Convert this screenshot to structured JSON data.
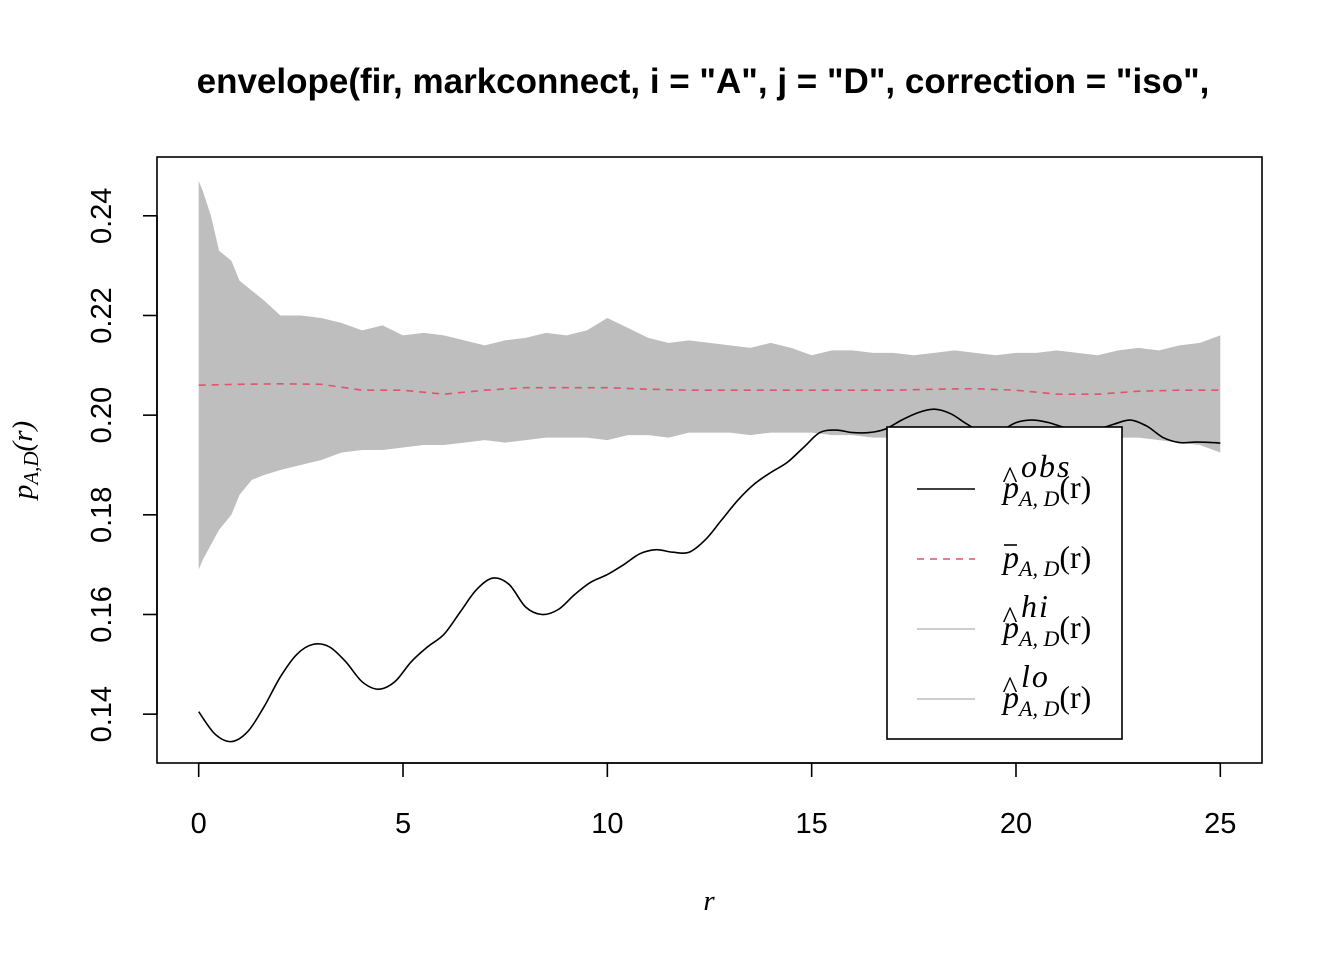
{
  "chart_data": {
    "type": "line",
    "title": "envelope(fir, markconnect, i = \"A\", j = \"D\", correction = \"iso\",",
    "xlabel": "r",
    "ylabel": "p_{A,D}(r)",
    "xlim": [
      -1.02,
      26.02
    ],
    "ylim": [
      0.1302,
      0.2518
    ],
    "xticks": [
      0,
      5,
      10,
      15,
      20,
      25
    ],
    "yticks": [
      0.14,
      0.16,
      0.18,
      0.2,
      0.22,
      0.24
    ],
    "xtick_labels": [
      "0",
      "5",
      "10",
      "15",
      "20",
      "25"
    ],
    "ytick_labels": [
      "0.14",
      "0.16",
      "0.18",
      "0.20",
      "0.22",
      "0.24"
    ],
    "grid": false,
    "legend_position": "bottom-right",
    "legend": [
      {
        "key": "obs",
        "sup": "obs",
        "color": "#000000",
        "style": "solid"
      },
      {
        "key": "theo",
        "sup": "",
        "color": "#DF536B",
        "style": "dashed"
      },
      {
        "key": "hi",
        "sup": "hi",
        "color": "#BEBEBE",
        "style": "solid"
      },
      {
        "key": "lo",
        "sup": "lo",
        "color": "#BEBEBE",
        "style": "solid"
      }
    ],
    "legend_text": {
      "sub": "A, D",
      "arg": "(r)"
    },
    "colors": {
      "envelope": "#BEBEBE",
      "obs": "#000000",
      "theo": "#DF536B"
    },
    "series": [
      {
        "key": "obs",
        "x": [
          0,
          0.4,
          0.8,
          1.2,
          1.6,
          2.0,
          2.4,
          2.8,
          3.2,
          3.6,
          4.0,
          4.4,
          4.8,
          5.2,
          5.6,
          6.0,
          6.4,
          6.8,
          7.2,
          7.6,
          8.0,
          8.4,
          8.8,
          9.2,
          9.6,
          10.0,
          10.4,
          10.8,
          11.2,
          11.6,
          12.0,
          12.4,
          12.8,
          13.2,
          13.6,
          14.0,
          14.4,
          14.8,
          15.2,
          15.6,
          16.0,
          16.4,
          16.8,
          17.2,
          17.6,
          18.0,
          18.4,
          18.8,
          19.2,
          19.6,
          20.0,
          20.4,
          20.8,
          21.2,
          21.6,
          22.0,
          22.4,
          22.8,
          23.2,
          23.6,
          24.0,
          24.4,
          24.8,
          25.0
        ],
        "y": [
          0.1405,
          0.136,
          0.1345,
          0.1365,
          0.1415,
          0.1475,
          0.152,
          0.154,
          0.1535,
          0.1505,
          0.1465,
          0.145,
          0.1465,
          0.1505,
          0.1535,
          0.156,
          0.1605,
          0.165,
          0.1673,
          0.166,
          0.1615,
          0.16,
          0.161,
          0.164,
          0.1665,
          0.168,
          0.17,
          0.1722,
          0.173,
          0.1725,
          0.1725,
          0.175,
          0.179,
          0.183,
          0.1862,
          0.1885,
          0.1905,
          0.1935,
          0.1965,
          0.197,
          0.1965,
          0.1965,
          0.1972,
          0.199,
          0.2005,
          0.2012,
          0.2003,
          0.1982,
          0.1965,
          0.1968,
          0.1985,
          0.199,
          0.1985,
          0.1975,
          0.197,
          0.1972,
          0.1982,
          0.199,
          0.1978,
          0.1955,
          0.1945,
          0.1946,
          0.1945,
          0.1944
        ]
      },
      {
        "key": "theo",
        "x": [
          0,
          1,
          2,
          3,
          4,
          5,
          6,
          7,
          8,
          9,
          10,
          11,
          12,
          13,
          14,
          15,
          16,
          17,
          18,
          19,
          20,
          21,
          22,
          23,
          24,
          25
        ],
        "y": [
          0.206,
          0.2062,
          0.2063,
          0.2062,
          0.205,
          0.205,
          0.2042,
          0.205,
          0.2055,
          0.2055,
          0.2055,
          0.2052,
          0.205,
          0.205,
          0.205,
          0.205,
          0.205,
          0.205,
          0.2052,
          0.2053,
          0.205,
          0.2042,
          0.2042,
          0.2048,
          0.205,
          0.205
        ]
      },
      {
        "key": "hi",
        "x": [
          0,
          0.1,
          0.3,
          0.5,
          0.8,
          1.0,
          1.3,
          1.6,
          2.0,
          2.5,
          3.0,
          3.5,
          4.0,
          4.5,
          5.0,
          5.5,
          6.0,
          6.5,
          7.0,
          7.5,
          8.0,
          8.5,
          9.0,
          9.5,
          10.0,
          10.5,
          11.0,
          11.5,
          12.0,
          12.5,
          13.0,
          13.5,
          14.0,
          14.5,
          15.0,
          15.5,
          16.0,
          16.5,
          17.0,
          17.5,
          18.0,
          18.5,
          19.0,
          19.5,
          20.0,
          20.5,
          21.0,
          21.5,
          22.0,
          22.5,
          23.0,
          23.5,
          24.0,
          24.5,
          25.0
        ],
        "y": [
          0.247,
          0.245,
          0.24,
          0.233,
          0.231,
          0.227,
          0.225,
          0.223,
          0.22,
          0.22,
          0.2195,
          0.2185,
          0.217,
          0.218,
          0.216,
          0.2165,
          0.216,
          0.215,
          0.214,
          0.215,
          0.2155,
          0.2165,
          0.216,
          0.217,
          0.2195,
          0.2175,
          0.2155,
          0.2145,
          0.215,
          0.2145,
          0.214,
          0.2135,
          0.2145,
          0.2135,
          0.212,
          0.213,
          0.213,
          0.2125,
          0.2125,
          0.212,
          0.2125,
          0.213,
          0.2125,
          0.212,
          0.2125,
          0.2125,
          0.213,
          0.2125,
          0.212,
          0.213,
          0.2135,
          0.213,
          0.214,
          0.2145,
          0.216
        ]
      },
      {
        "key": "lo",
        "x": [
          0,
          0.1,
          0.3,
          0.5,
          0.8,
          1.0,
          1.3,
          1.6,
          2.0,
          2.5,
          3.0,
          3.5,
          4.0,
          4.5,
          5.0,
          5.5,
          6.0,
          6.5,
          7.0,
          7.5,
          8.0,
          8.5,
          9.0,
          9.5,
          10.0,
          10.5,
          11.0,
          11.5,
          12.0,
          12.5,
          13.0,
          13.5,
          14.0,
          14.5,
          15.0,
          15.5,
          16.0,
          16.5,
          17.0,
          17.5,
          18.0,
          18.5,
          19.0,
          19.5,
          20.0,
          20.5,
          21.0,
          21.5,
          22.0,
          22.5,
          23.0,
          23.5,
          24.0,
          24.5,
          25.0
        ],
        "y": [
          0.169,
          0.171,
          0.174,
          0.177,
          0.18,
          0.184,
          0.187,
          0.188,
          0.189,
          0.19,
          0.191,
          0.1925,
          0.193,
          0.193,
          0.1935,
          0.194,
          0.194,
          0.1945,
          0.195,
          0.1945,
          0.195,
          0.1955,
          0.1955,
          0.1955,
          0.195,
          0.196,
          0.196,
          0.1955,
          0.1965,
          0.1965,
          0.1965,
          0.196,
          0.1965,
          0.1965,
          0.1965,
          0.196,
          0.196,
          0.1955,
          0.1955,
          0.195,
          0.1955,
          0.1945,
          0.1945,
          0.195,
          0.1955,
          0.195,
          0.195,
          0.1955,
          0.196,
          0.1955,
          0.1955,
          0.195,
          0.1945,
          0.194,
          0.1925
        ]
      }
    ]
  }
}
